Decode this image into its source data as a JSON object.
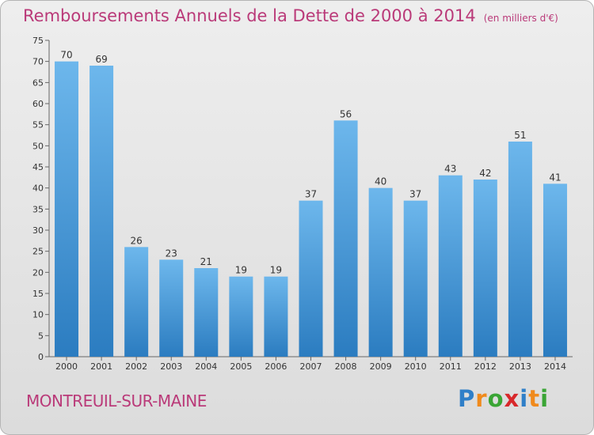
{
  "header": {
    "title": "Remboursements Annuels de la Dette de 2000 à 2014",
    "unit": "(en milliers d'€)"
  },
  "footer": {
    "commune": "MONTREUIL-SUR-MAINE",
    "logo_letters": [
      "P",
      "r",
      "o",
      "x",
      "i",
      "t",
      "i"
    ],
    "logo_colors": [
      "#2f7fc8",
      "#f08a1c",
      "#3aa535",
      "#d8282b",
      "#2f7fc8",
      "#f08a1c",
      "#3aa535"
    ]
  },
  "chart_data": {
    "type": "bar",
    "categories": [
      "2000",
      "2001",
      "2002",
      "2003",
      "2004",
      "2005",
      "2006",
      "2007",
      "2008",
      "2009",
      "2010",
      "2011",
      "2012",
      "2013",
      "2014"
    ],
    "values": [
      70,
      69,
      26,
      23,
      21,
      19,
      19,
      37,
      56,
      40,
      37,
      43,
      42,
      51,
      41
    ],
    "data_labels": [
      "70",
      "69",
      "26",
      "23",
      "21",
      "19",
      "19",
      "37",
      "56",
      "40",
      "37",
      "43",
      "42",
      "51",
      "41"
    ],
    "yticks": [
      "0",
      "5",
      "10",
      "15",
      "20",
      "25",
      "30",
      "35",
      "40",
      "45",
      "50",
      "55",
      "60",
      "65",
      "70",
      "75"
    ],
    "ylim": [
      0,
      75
    ],
    "grid": false,
    "bar_color_light": "#6db7ec",
    "bar_color_dark": "#2b7cc0"
  }
}
